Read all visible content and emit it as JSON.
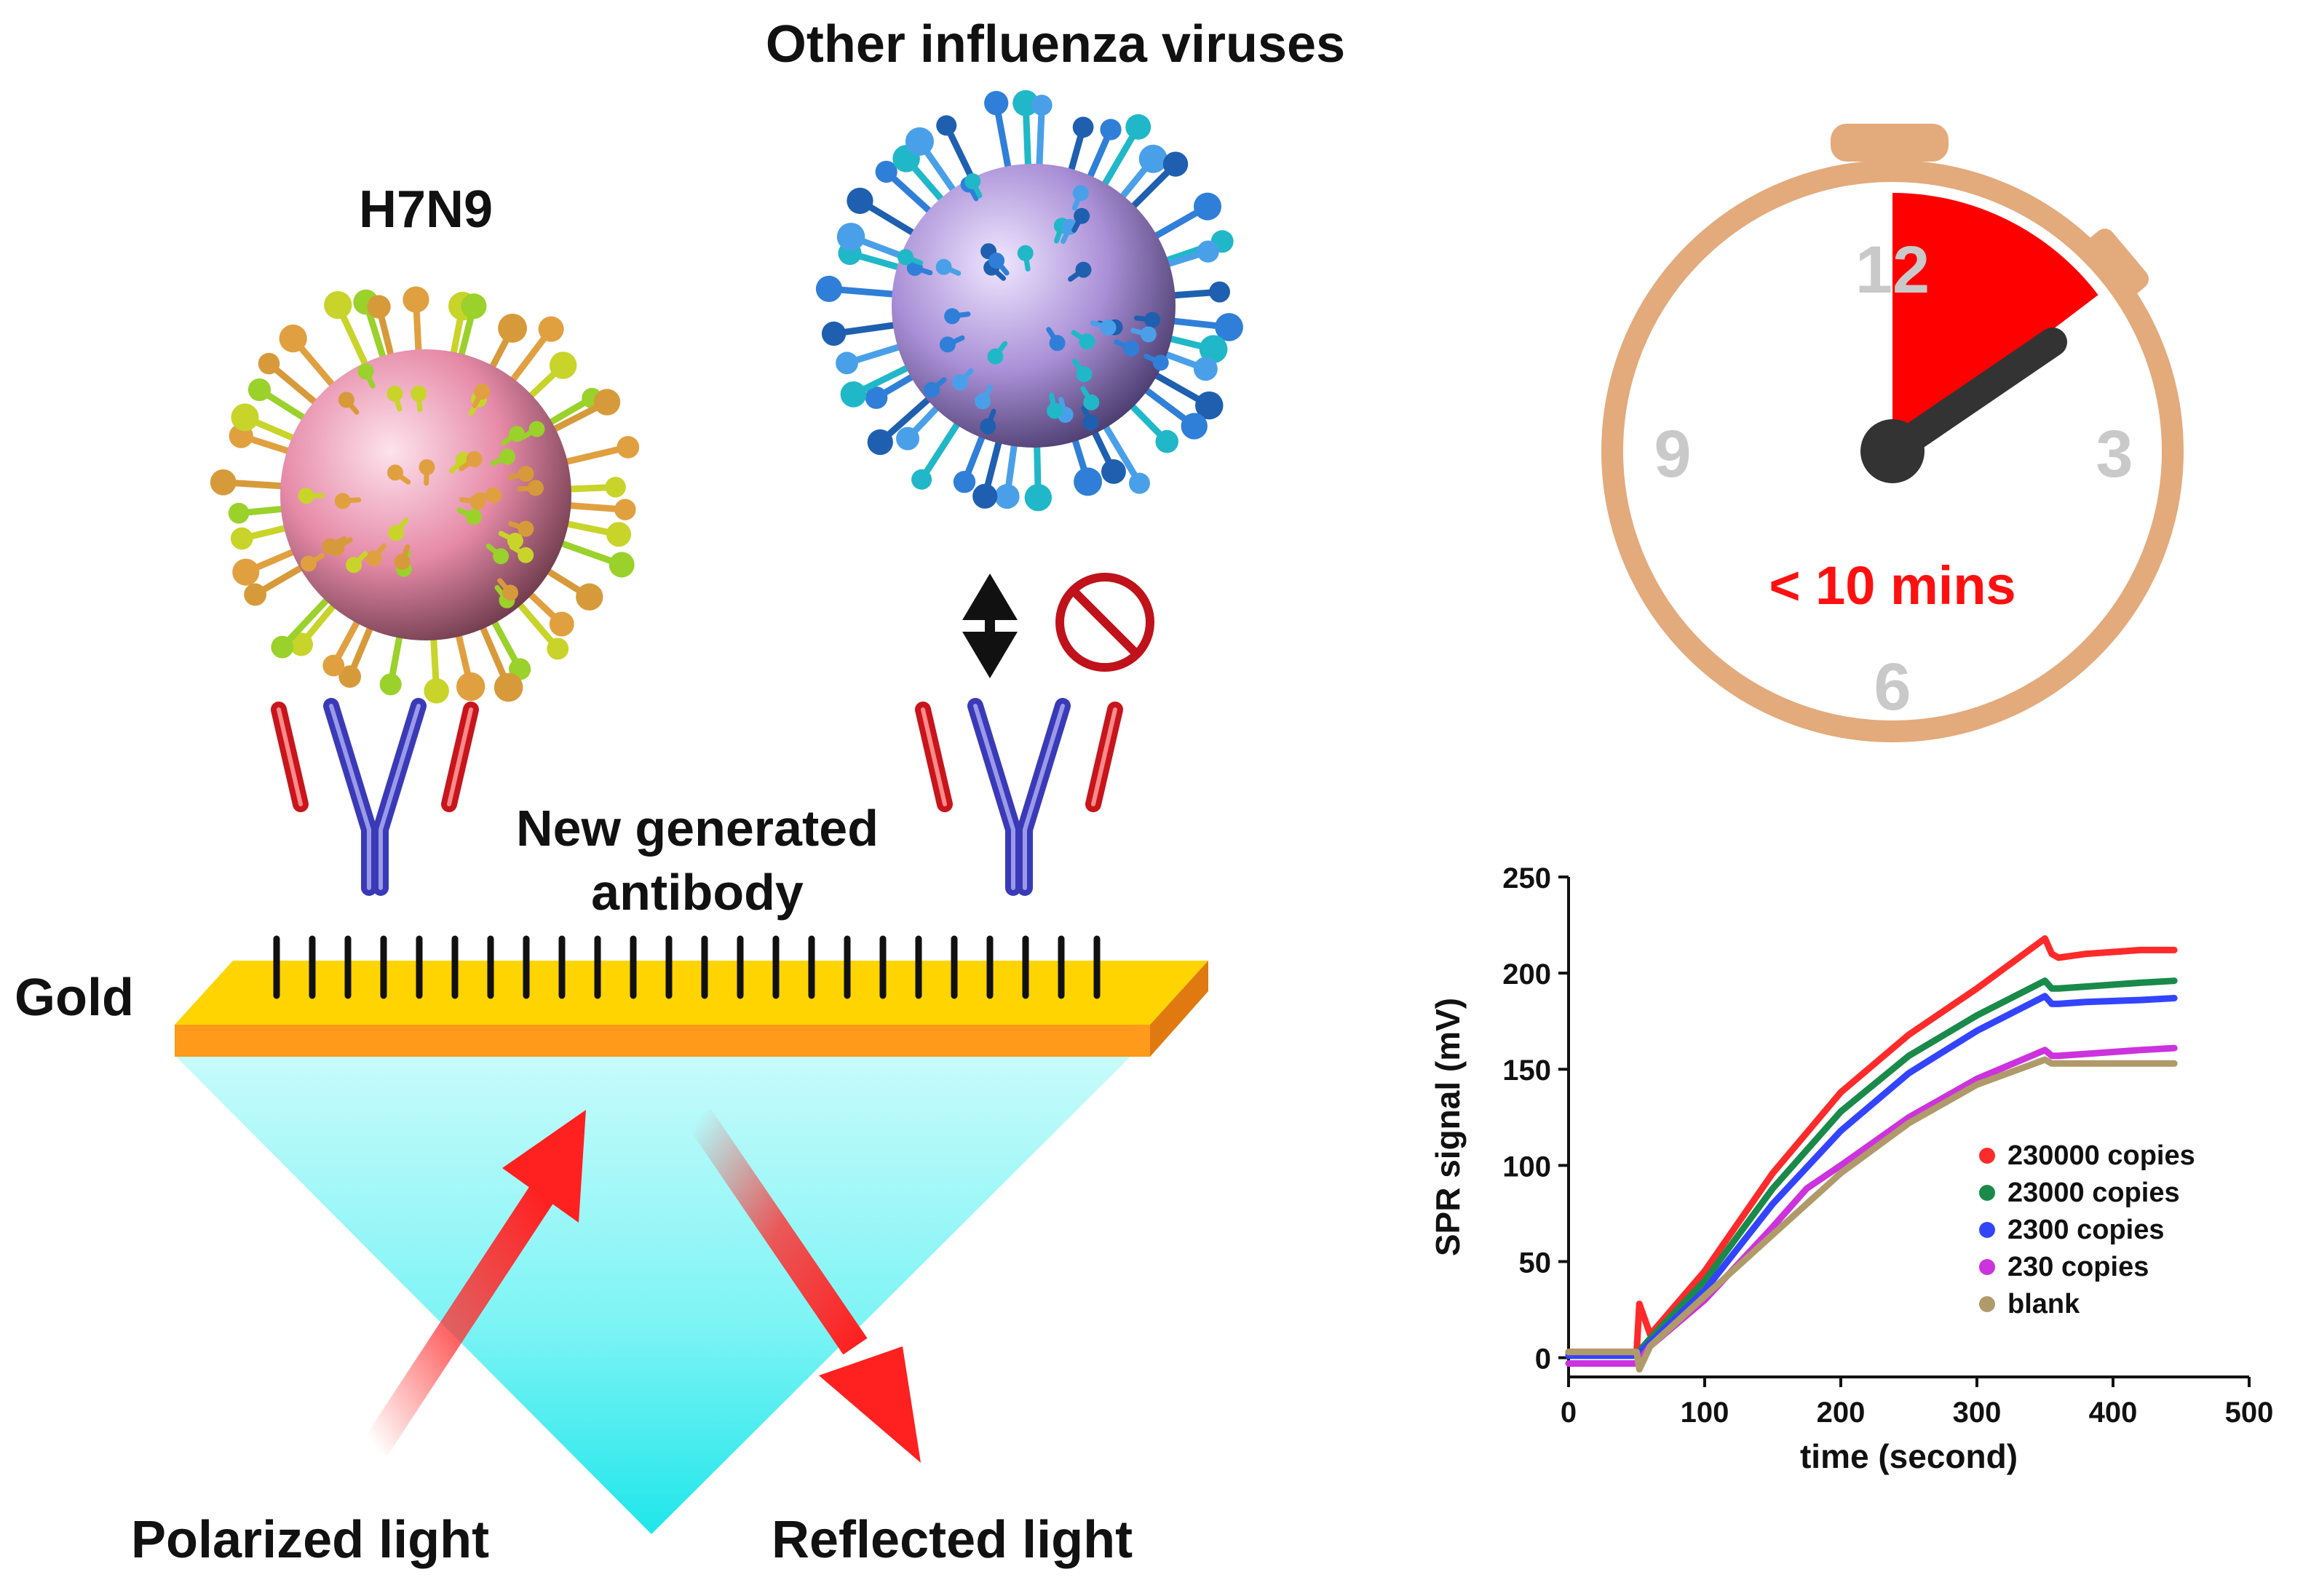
{
  "labels": {
    "h7n9": "H7N9",
    "other_viruses": "Other influenza viruses",
    "antibody_line1": "New generated",
    "antibody_line2": "antibody",
    "gold": "Gold",
    "polarized_light": "Polarized light",
    "reflected_light": "Reflected light"
  },
  "timer": {
    "numbers": [
      "12",
      "3",
      "6",
      "9"
    ],
    "duration_text": "< 10 mins"
  },
  "colors": {
    "timer_ring": "#e3aa7c",
    "timer_sector": "#ff0000",
    "gold_top": "#ffd400",
    "gold_edge": "#ff9a1a",
    "prism": "#4ff0f2",
    "light_arrow": "#ff2a2a",
    "antibody_heavy": "#3a3ab8",
    "antibody_light": "#c8151b",
    "h7n9_core": "#e48aa8",
    "other_core": "#a98fd6"
  },
  "chart_data": {
    "type": "line",
    "xlabel": "time (second)",
    "ylabel": "SPR signal (mV)",
    "xlim": [
      0,
      500
    ],
    "ylim": [
      -10,
      250
    ],
    "xticks": [
      0,
      100,
      200,
      300,
      400,
      500
    ],
    "yticks": [
      0,
      50,
      100,
      150,
      200,
      250
    ],
    "legend_position": "right",
    "series": [
      {
        "name": "230000 copies",
        "color": "#ff2a2a",
        "x": [
          0,
          50,
          52,
          60,
          100,
          150,
          200,
          250,
          300,
          350,
          355,
          360,
          380,
          420,
          445
        ],
        "y": [
          3,
          3,
          28,
          12,
          45,
          96,
          138,
          168,
          192,
          218,
          210,
          208,
          210,
          212,
          212
        ]
      },
      {
        "name": "23000 copies",
        "color": "#1a8a4a",
        "x": [
          0,
          50,
          60,
          100,
          150,
          200,
          250,
          300,
          350,
          355,
          360,
          380,
          420,
          445
        ],
        "y": [
          2,
          2,
          10,
          40,
          88,
          128,
          157,
          178,
          196,
          192,
          192,
          193,
          195,
          196
        ]
      },
      {
        "name": "2300 copies",
        "color": "#3344ff",
        "x": [
          0,
          50,
          60,
          100,
          150,
          200,
          250,
          300,
          350,
          355,
          360,
          380,
          420,
          445
        ],
        "y": [
          1,
          1,
          8,
          35,
          80,
          118,
          148,
          170,
          188,
          184,
          184,
          185,
          186,
          187
        ]
      },
      {
        "name": "230 copies",
        "color": "#cc33dd",
        "x": [
          0,
          50,
          60,
          100,
          150,
          175,
          200,
          250,
          300,
          350,
          355,
          360,
          380,
          420,
          445
        ],
        "y": [
          -3,
          -3,
          6,
          30,
          68,
          88,
          100,
          125,
          145,
          160,
          157,
          157,
          158,
          160,
          161
        ]
      },
      {
        "name": "blank",
        "color": "#b09a6a",
        "x": [
          0,
          50,
          52,
          60,
          100,
          150,
          200,
          250,
          300,
          350,
          355,
          360,
          380,
          420,
          445
        ],
        "y": [
          3,
          3,
          -6,
          6,
          32,
          64,
          96,
          122,
          142,
          155,
          153,
          153,
          153,
          153,
          153
        ]
      }
    ]
  }
}
